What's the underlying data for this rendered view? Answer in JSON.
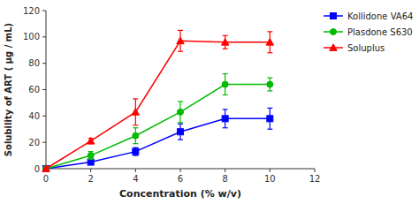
{
  "chart_data": {
    "type": "line",
    "xlabel": "Concentration (% w/v)",
    "ylabel": "Solubility of ART ( μg / mL)",
    "x": [
      0,
      2,
      4,
      6,
      8,
      10
    ],
    "series": [
      {
        "name": "Kollidone VA64",
        "color": "#0000FF",
        "marker": "square",
        "line_style": "solid",
        "values": [
          0,
          5,
          13,
          28,
          38,
          38
        ],
        "errors": [
          0,
          2,
          3,
          6,
          7,
          8
        ]
      },
      {
        "name": "Plasdone S630",
        "color": "#00BB00",
        "marker": "circle",
        "line_style": "solid",
        "values": [
          0,
          10,
          25,
          43,
          64,
          64
        ],
        "errors": [
          0,
          3,
          6,
          8,
          8,
          5
        ]
      },
      {
        "name": "Soluplus",
        "color": "#FF0000",
        "marker": "triangle",
        "line_style": "solid",
        "values": [
          0,
          21,
          43,
          97,
          96,
          96
        ],
        "errors": [
          0,
          2,
          10,
          8,
          5,
          8
        ]
      }
    ],
    "xlim": [
      0,
      12
    ],
    "ylim": [
      0,
      120
    ],
    "xticks": [
      0,
      2,
      4,
      6,
      8,
      10,
      12
    ],
    "yticks": [
      0,
      20,
      40,
      60,
      80,
      100,
      120
    ],
    "grid": false,
    "legend": "right"
  }
}
